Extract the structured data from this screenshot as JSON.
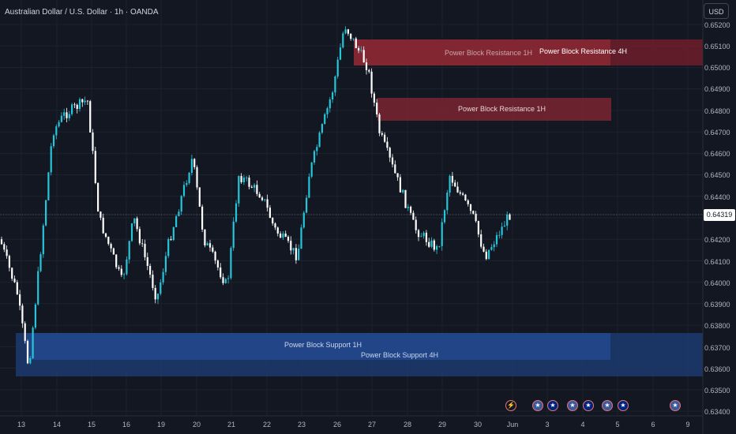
{
  "title": "Australian Dollar / U.S. Dollar · 1h · OANDA",
  "currency_button": "USD",
  "current_price": "0.64319",
  "price_axis": [
    "0.65200",
    "0.65100",
    "0.65000",
    "0.64900",
    "0.64800",
    "0.64700",
    "0.64600",
    "0.64500",
    "0.64400",
    "0.64200",
    "0.64100",
    "0.64000",
    "0.63900",
    "0.63800",
    "0.63700",
    "0.63600",
    "0.63500",
    "0.63400"
  ],
  "time_axis": [
    "13",
    "14",
    "15",
    "16",
    "19",
    "20",
    "21",
    "22",
    "23",
    "26",
    "27",
    "28",
    "29",
    "30",
    "Jun",
    "3",
    "4",
    "5",
    "6",
    "9"
  ],
  "zones": [
    {
      "label": "Power Block Resistance  1H",
      "kind": "resistance"
    },
    {
      "label": "Power Block Resistance  4H",
      "kind": "resistance"
    },
    {
      "label": "Power Block Resistance  1H",
      "kind": "resistance"
    },
    {
      "label": "Power Block Support 1H",
      "kind": "support"
    },
    {
      "label": "Power Block Support 4H",
      "kind": "support"
    }
  ],
  "events": [
    {
      "icon": "lightning-icon"
    },
    {
      "icon": "us-flag-icon"
    },
    {
      "icon": "au-flag-icon"
    },
    {
      "icon": "us-flag-icon"
    },
    {
      "icon": "au-flag-icon"
    },
    {
      "icon": "us-flag-icon"
    },
    {
      "icon": "au-flag-icon"
    },
    {
      "icon": "us-flag-icon"
    }
  ],
  "colors": {
    "background": "#131722",
    "up": "#26c6da",
    "down": "#ffffff",
    "resistance": "#b2333f",
    "support": "#2962ff"
  },
  "chart_data": {
    "type": "candlestick",
    "title": "Australian Dollar / U.S. Dollar · 1h · OANDA",
    "ylim": [
      0.634,
      0.6525
    ],
    "last_price": 0.64319,
    "trend_points": [
      {
        "x": "13",
        "y": 0.6395
      },
      {
        "x": "13",
        "y": 0.636
      },
      {
        "x": "14",
        "y": 0.647
      },
      {
        "x": "14",
        "y": 0.6478
      },
      {
        "x": "15",
        "y": 0.6485
      },
      {
        "x": "15",
        "y": 0.643
      },
      {
        "x": "16",
        "y": 0.64
      },
      {
        "x": "16",
        "y": 0.643
      },
      {
        "x": "19",
        "y": 0.6392
      },
      {
        "x": "19",
        "y": 0.6418
      },
      {
        "x": "20",
        "y": 0.6458
      },
      {
        "x": "20",
        "y": 0.642
      },
      {
        "x": "21",
        "y": 0.6398
      },
      {
        "x": "21",
        "y": 0.645
      },
      {
        "x": "22",
        "y": 0.644
      },
      {
        "x": "22",
        "y": 0.6425
      },
      {
        "x": "23",
        "y": 0.6412
      },
      {
        "x": "23",
        "y": 0.645
      },
      {
        "x": "26",
        "y": 0.649
      },
      {
        "x": "26",
        "y": 0.652
      },
      {
        "x": "27",
        "y": 0.65
      },
      {
        "x": "27",
        "y": 0.647
      },
      {
        "x": "28",
        "y": 0.644
      },
      {
        "x": "28",
        "y": 0.6425
      },
      {
        "x": "29",
        "y": 0.6415
      },
      {
        "x": "29",
        "y": 0.645
      },
      {
        "x": "30",
        "y": 0.643
      },
      {
        "x": "30",
        "y": 0.6412
      },
      {
        "x": "Jun",
        "y": 0.6435
      }
    ]
  }
}
